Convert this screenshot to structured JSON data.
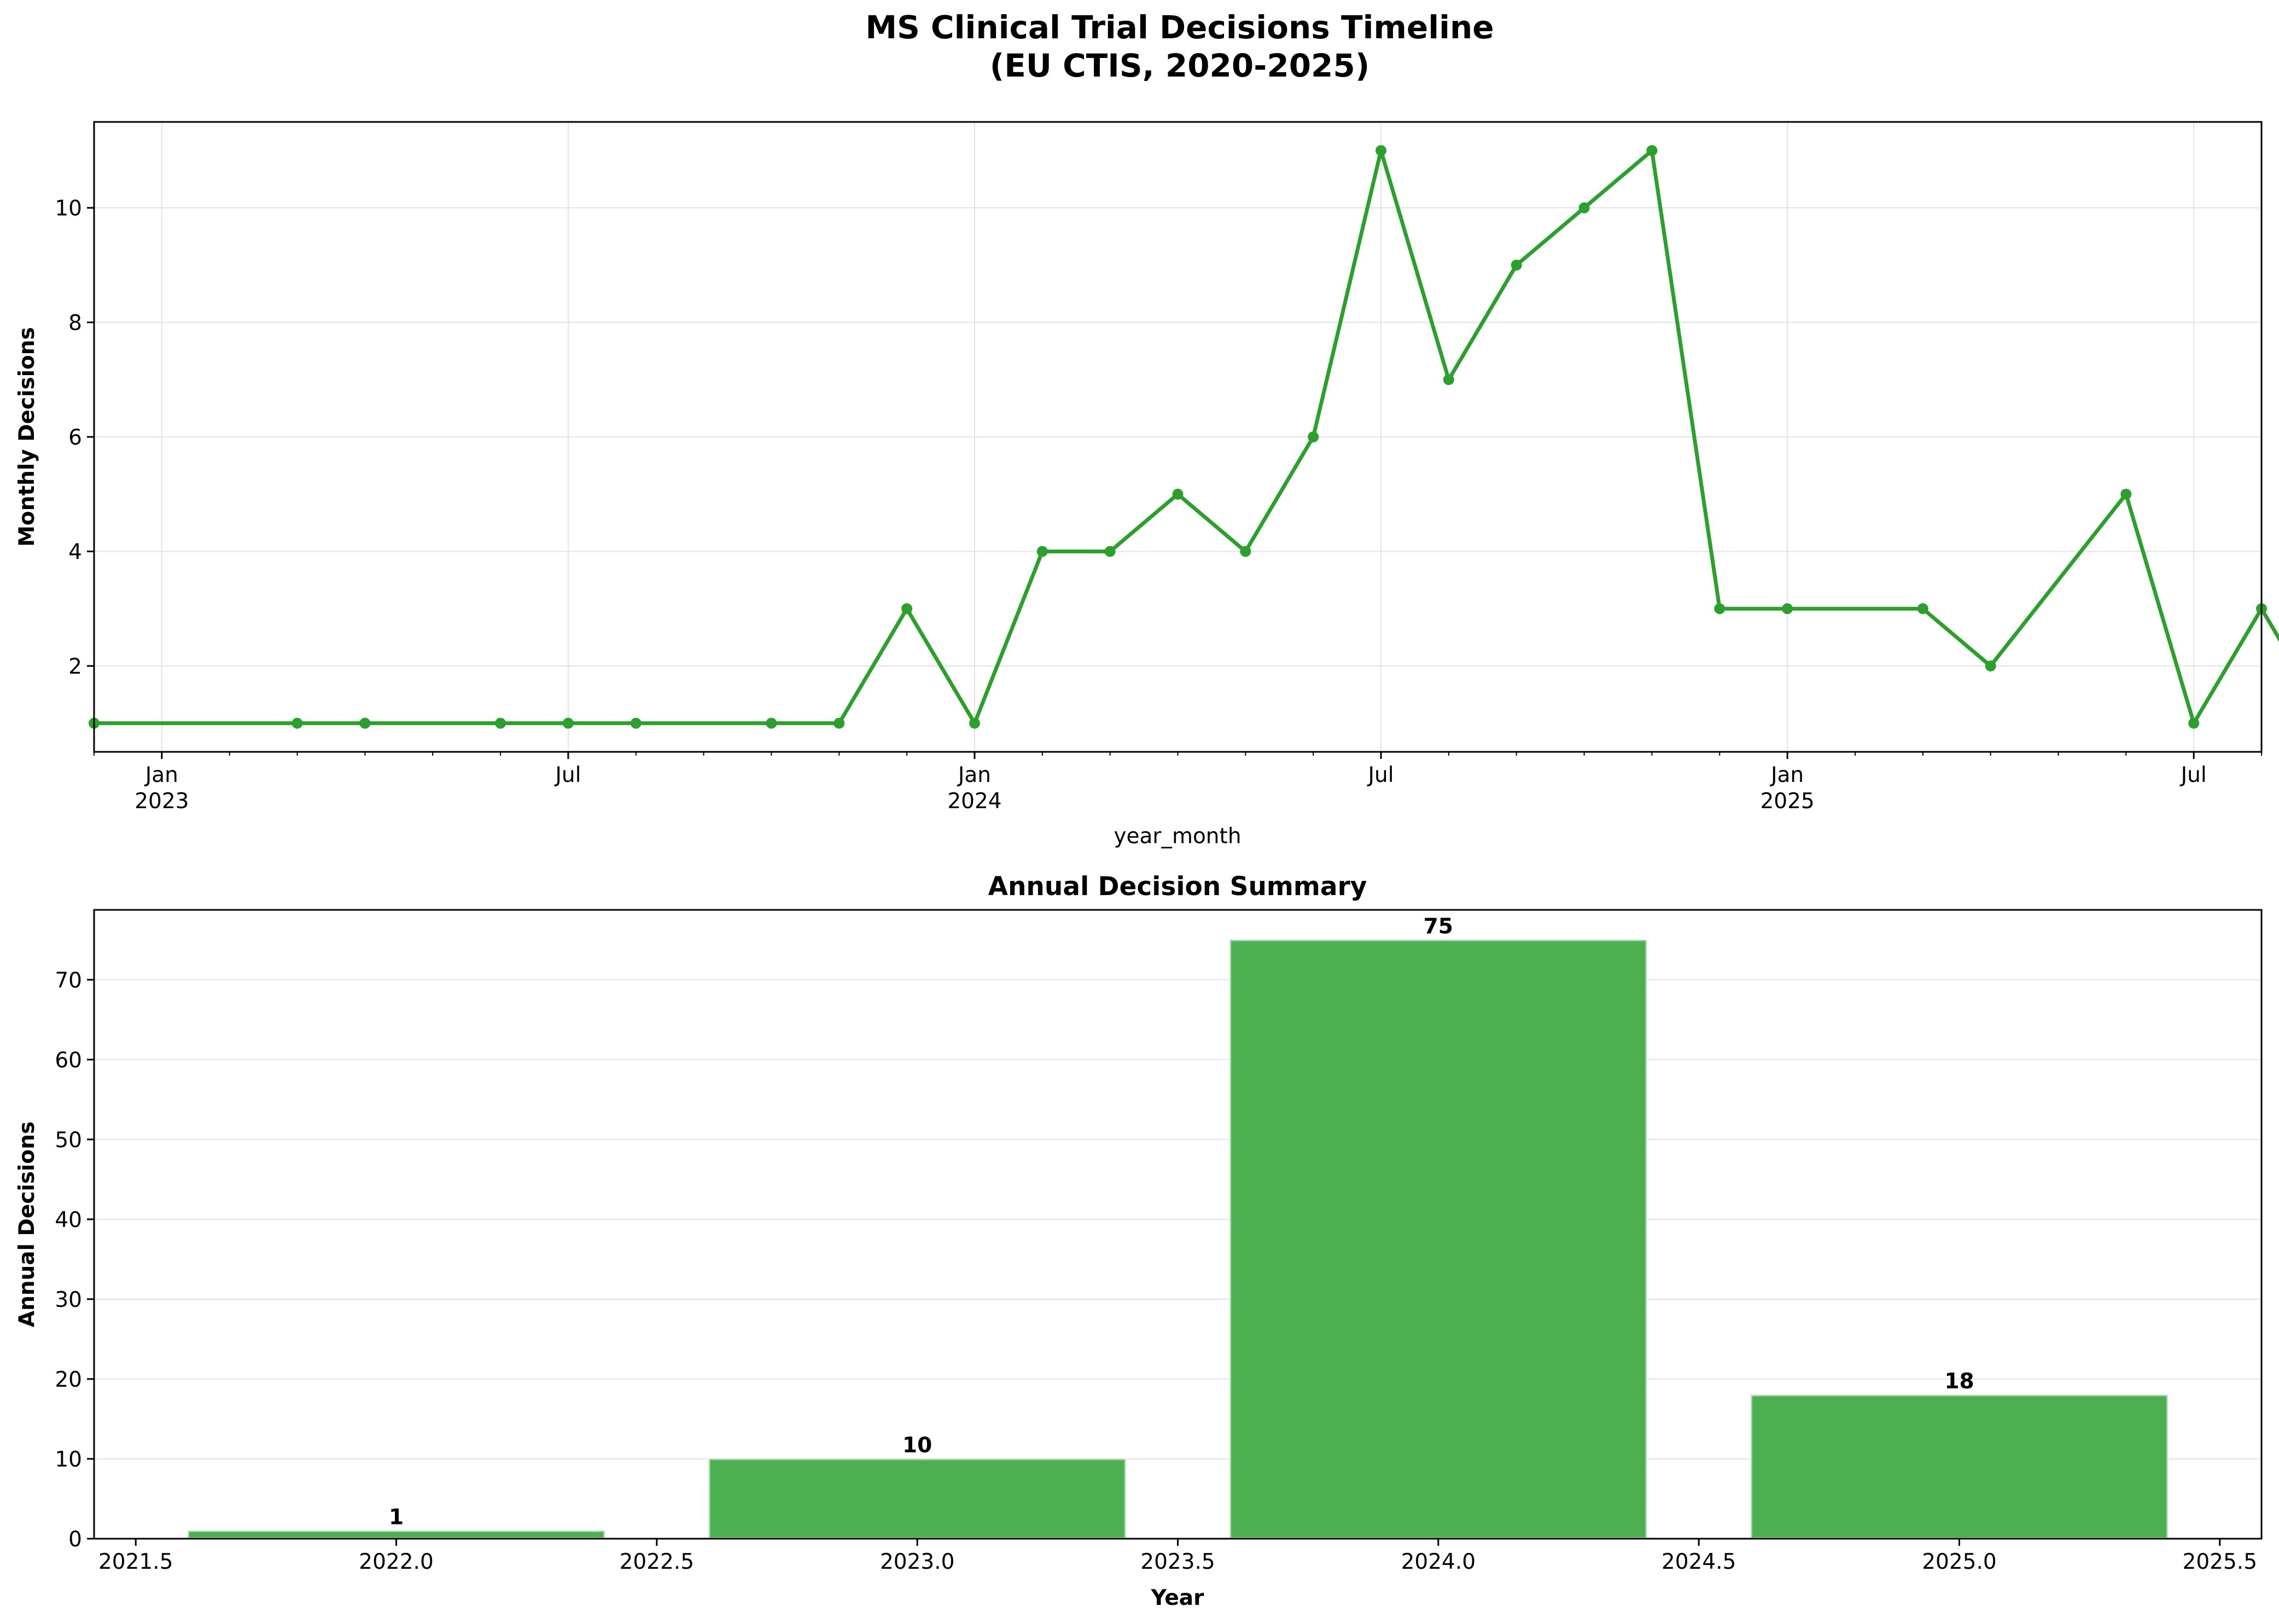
{
  "figure": {
    "title_line1": "MS Clinical Trial Decisions Timeline",
    "title_line2": "(EU CTIS, 2020-2025)"
  },
  "chart_data": [
    {
      "type": "line",
      "title": "",
      "xlabel": "year_month",
      "ylabel": "Monthly Decisions",
      "x_major_ticks": [
        {
          "date": "2023-01",
          "label": "Jan",
          "sublabel": "2023"
        },
        {
          "date": "2023-07",
          "label": "Jul",
          "sublabel": ""
        },
        {
          "date": "2024-01",
          "label": "Jan",
          "sublabel": "2024"
        },
        {
          "date": "2024-07",
          "label": "Jul",
          "sublabel": ""
        },
        {
          "date": "2025-01",
          "label": "Jan",
          "sublabel": "2025"
        },
        {
          "date": "2025-07",
          "label": "Jul",
          "sublabel": ""
        }
      ],
      "yticks": [
        2,
        4,
        6,
        8,
        10
      ],
      "ylim": [
        0.5,
        11.5
      ],
      "xlim": [
        "2022-12",
        "2025-08"
      ],
      "grid": true,
      "series": [
        {
          "color": "#2ca02c",
          "x": [
            "2022-12",
            "2023-03",
            "2023-04",
            "2023-06",
            "2023-07",
            "2023-08",
            "2023-10",
            "2023-11",
            "2023-12",
            "2024-01",
            "2024-02",
            "2024-03",
            "2024-04",
            "2024-05",
            "2024-06",
            "2024-07",
            "2024-08",
            "2024-09",
            "2024-10",
            "2024-11",
            "2024-12",
            "2025-01",
            "2025-03",
            "2025-04",
            "2025-06",
            "2025-07",
            "2025-08",
            "2025-09"
          ],
          "values": [
            1,
            1,
            1,
            1,
            1,
            1,
            1,
            1,
            3,
            1,
            4,
            4,
            5,
            4,
            6,
            11,
            7,
            9,
            10,
            11,
            3,
            3,
            3,
            2,
            5,
            1,
            3,
            1
          ]
        }
      ]
    },
    {
      "type": "bar",
      "title": "Annual Decision Summary",
      "xlabel": "Year",
      "ylabel": "Annual Decisions",
      "categories": [
        2022,
        2023,
        2024,
        2025
      ],
      "values": [
        1,
        10,
        75,
        18
      ],
      "bar_width": 0.8,
      "xlim": [
        2021.42,
        2025.58
      ],
      "xticks": [
        "2021.5",
        "2022.0",
        "2022.5",
        "2023.0",
        "2023.5",
        "2024.0",
        "2024.5",
        "2025.0",
        "2025.5"
      ],
      "ylim": [
        0,
        78.75
      ],
      "yticks": [
        0,
        10,
        20,
        30,
        40,
        50,
        60,
        70
      ],
      "grid": true,
      "color": "#4caf50"
    }
  ]
}
